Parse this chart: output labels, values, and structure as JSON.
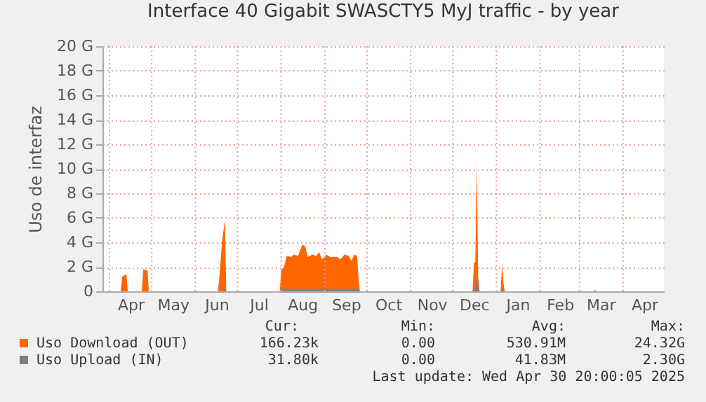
{
  "chart_data": {
    "type": "area",
    "title": "Interface 40 Gigabit SWASCTY5 MyJ traffic - by year",
    "ylabel": "Uso de interfaz",
    "xlim": [
      "2024-03-27",
      "2025-04-30"
    ],
    "xticks": [
      {
        "value": "2024-04-01",
        "label": null
      },
      {
        "value": "2024-04-16",
        "label": "Apr"
      },
      {
        "value": "2024-05-01",
        "label": null
      },
      {
        "value": "2024-05-16",
        "label": "May"
      },
      {
        "value": "2024-06-01",
        "label": null
      },
      {
        "value": "2024-06-16",
        "label": "Jun"
      },
      {
        "value": "2024-07-01",
        "label": null
      },
      {
        "value": "2024-07-16",
        "label": "Jul"
      },
      {
        "value": "2024-08-01",
        "label": null
      },
      {
        "value": "2024-08-16",
        "label": "Aug"
      },
      {
        "value": "2024-09-01",
        "label": null
      },
      {
        "value": "2024-09-16",
        "label": "Sep"
      },
      {
        "value": "2024-10-01",
        "label": null
      },
      {
        "value": "2024-10-16",
        "label": "Oct"
      },
      {
        "value": "2024-11-01",
        "label": null
      },
      {
        "value": "2024-11-16",
        "label": "Nov"
      },
      {
        "value": "2024-12-01",
        "label": null
      },
      {
        "value": "2024-12-16",
        "label": "Dec"
      },
      {
        "value": "2025-01-01",
        "label": null
      },
      {
        "value": "2025-01-16",
        "label": "Jan"
      },
      {
        "value": "2025-02-01",
        "label": null
      },
      {
        "value": "2025-02-15",
        "label": "Feb"
      },
      {
        "value": "2025-03-01",
        "label": null
      },
      {
        "value": "2025-03-16",
        "label": "Mar"
      },
      {
        "value": "2025-04-01",
        "label": null
      },
      {
        "value": "2025-04-16",
        "label": "Apr"
      }
    ],
    "ylim": [
      0,
      20
    ],
    "yticks": [
      0,
      {
        "value": 2,
        "label": "2 G"
      },
      {
        "value": 4,
        "label": "4 G"
      },
      {
        "value": 6,
        "label": "6 G"
      },
      {
        "value": 8,
        "label": "8 G"
      },
      {
        "value": 10,
        "label": "10 G"
      },
      {
        "value": 12,
        "label": "12 G"
      },
      {
        "value": 14,
        "label": "14 G"
      },
      {
        "value": 16,
        "label": "16 G"
      },
      {
        "value": 18,
        "label": "18 G"
      },
      {
        "value": 20,
        "label": "20 G"
      }
    ],
    "grid": true,
    "legend": "bottom",
    "series": [
      {
        "name": "Uso Download (OUT)",
        "color": "#ff6600",
        "x": [
          "2024-03-27",
          "2024-04-09",
          "2024-04-10",
          "2024-04-13",
          "2024-04-14",
          "2024-04-24",
          "2024-04-25",
          "2024-04-28",
          "2024-04-29",
          "2024-06-17",
          "2024-06-18",
          "2024-06-20",
          "2024-06-22",
          "2024-06-23",
          "2024-07-31",
          "2024-08-01",
          "2024-08-03",
          "2024-08-05",
          "2024-08-08",
          "2024-08-10",
          "2024-08-13",
          "2024-08-16",
          "2024-08-18",
          "2024-08-20",
          "2024-08-23",
          "2024-08-26",
          "2024-08-28",
          "2024-08-30",
          "2024-09-02",
          "2024-09-05",
          "2024-09-10",
          "2024-09-12",
          "2024-09-15",
          "2024-09-18",
          "2024-09-20",
          "2024-09-22",
          "2024-09-24",
          "2024-09-25",
          "2024-09-26",
          "2024-12-15",
          "2024-12-16",
          "2024-12-17",
          "2024-12-18",
          "2024-12-19",
          "2024-12-20",
          "2025-01-04",
          "2025-01-05",
          "2025-01-06",
          "2025-01-07",
          "2025-03-11",
          "2025-03-12",
          "2025-03-13",
          "2025-04-30"
        ],
        "values": [
          0,
          0,
          1.2,
          1.4,
          0,
          0,
          1.8,
          1.7,
          0,
          0,
          1.0,
          4.1,
          5.8,
          0,
          0,
          1.7,
          2.0,
          2.9,
          2.8,
          3.0,
          2.9,
          3.8,
          3.7,
          2.8,
          3.0,
          2.9,
          3.2,
          2.6,
          3.0,
          2.8,
          2.8,
          2.6,
          3.0,
          2.9,
          2.5,
          3.0,
          2.9,
          1.0,
          0,
          0,
          2.3,
          2.4,
          10.6,
          1.2,
          0,
          0,
          2.3,
          0.6,
          0,
          0,
          0.1,
          0,
          0
        ]
      },
      {
        "name": "Uso Upload (IN)",
        "color": "#7f7f7f",
        "x": [
          "2024-03-27",
          "2024-06-20",
          "2024-06-21",
          "2024-06-23",
          "2024-07-31",
          "2024-08-01",
          "2024-09-25",
          "2024-09-26",
          "2024-12-15",
          "2024-12-17",
          "2024-12-18",
          "2024-12-19",
          "2024-12-20",
          "2025-01-04",
          "2025-01-05",
          "2025-01-06",
          "2025-04-30"
        ],
        "values": [
          0,
          0,
          0.3,
          0,
          0,
          0.2,
          0.2,
          0,
          0,
          0.3,
          1.1,
          0.5,
          0,
          0,
          0.4,
          0,
          0
        ]
      }
    ],
    "annotations": [
      "Cur:",
      "Min:",
      "Avg:",
      "Max:",
      "166.23k",
      "0.00",
      "530.91M",
      "24.32G",
      "31.80k",
      "0.00",
      "41.83M",
      "2.30G",
      "Last update: Wed Apr 30 20:00:05 2025"
    ]
  }
}
